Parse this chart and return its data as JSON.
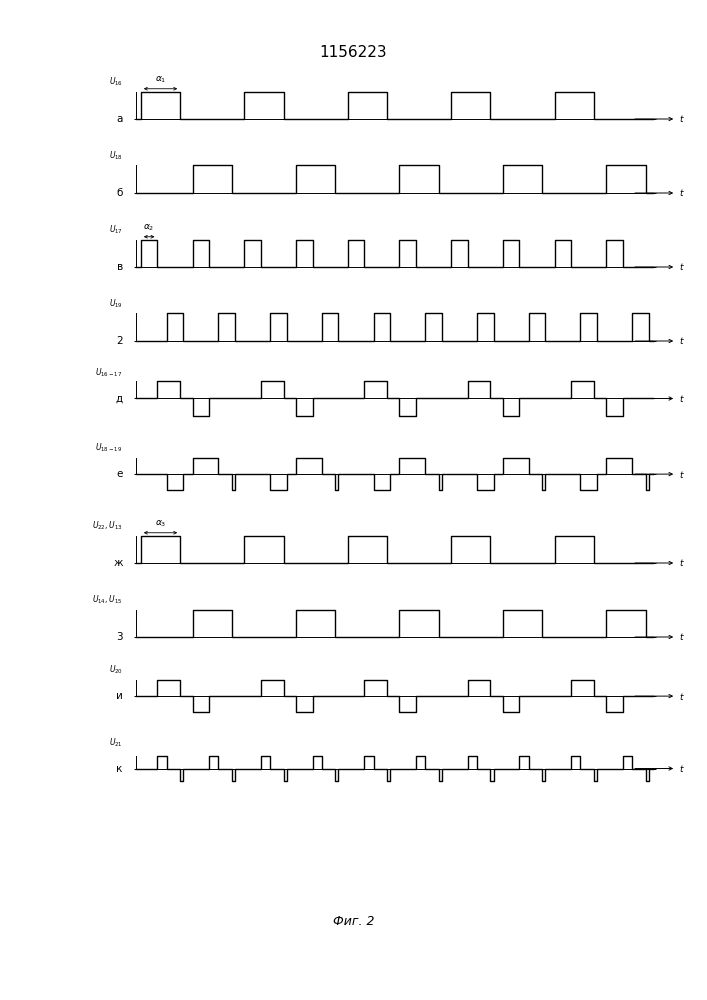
{
  "title": "1156223",
  "fig_label": "Фиг. 2",
  "bg_color": "#ffffff",
  "lc": "#000000",
  "lw": 1.0,
  "T": 10.0,
  "rows": [
    {
      "label_top": "$U_{16}$",
      "label_left": "а",
      "alpha_label": "$\\alpha_1$",
      "ylim": [
        -0.4,
        1.6
      ]
    },
    {
      "label_top": "$U_{18}$",
      "label_left": "б",
      "alpha_label": null,
      "ylim": [
        -0.4,
        1.6
      ]
    },
    {
      "label_top": "$U_{17}$",
      "label_left": "в",
      "alpha_label": "$\\alpha_2$",
      "ylim": [
        -0.4,
        1.6
      ]
    },
    {
      "label_top": "$U_{19}$",
      "label_left": "2",
      "alpha_label": null,
      "ylim": [
        -0.4,
        1.6
      ]
    },
    {
      "label_top": "$U_{16-17}$",
      "label_left": "д",
      "alpha_label": null,
      "ylim": [
        -1.6,
        1.6
      ]
    },
    {
      "label_top": "$U_{18-19}$",
      "label_left": "е",
      "alpha_label": null,
      "ylim": [
        -1.6,
        1.8
      ]
    },
    {
      "label_top": "$U_{22},U_{13}$",
      "label_left": "ж",
      "alpha_label": "$\\alpha_3$",
      "ylim": [
        -0.4,
        1.6
      ]
    },
    {
      "label_top": "$U_{14},U_{15}$",
      "label_left": "3",
      "alpha_label": null,
      "ylim": [
        -0.4,
        1.6
      ]
    },
    {
      "label_top": "$U_{20}$",
      "label_left": "и",
      "alpha_label": null,
      "ylim": [
        -1.6,
        1.8
      ]
    },
    {
      "label_top": "$U_{21}$",
      "label_left": "к",
      "alpha_label": null,
      "ylim": [
        -2.2,
        2.2
      ]
    }
  ]
}
